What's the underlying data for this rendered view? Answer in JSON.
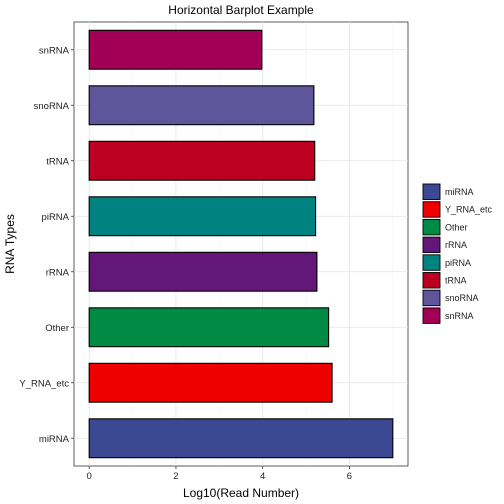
{
  "chart_data": {
    "type": "bar",
    "orientation": "horizontal",
    "title": "Horizontal  Barplot Example",
    "xlabel": "Log10(Read Number)",
    "ylabel": "RNA Types",
    "xlim": [
      -0.35,
      7.35
    ],
    "x_ticks": [
      0,
      2,
      4,
      6
    ],
    "grid": true,
    "legend_position": "right",
    "categories": [
      "miRNA",
      "Y_RNA_etc",
      "Other",
      "rRNA",
      "piRNA",
      "tRNA",
      "snoRNA",
      "snRNA"
    ],
    "values": [
      7.0,
      5.6,
      5.52,
      5.25,
      5.22,
      5.2,
      5.18,
      3.98
    ],
    "colors": [
      "#3B4992",
      "#EE0000",
      "#008B45",
      "#631879",
      "#008280",
      "#BB0021",
      "#5F559B",
      "#A20056"
    ],
    "legend": [
      "miRNA",
      "Y_RNA_etc",
      "Other",
      "rRNA",
      "piRNA",
      "tRNA",
      "snoRNA",
      "snRNA"
    ]
  }
}
